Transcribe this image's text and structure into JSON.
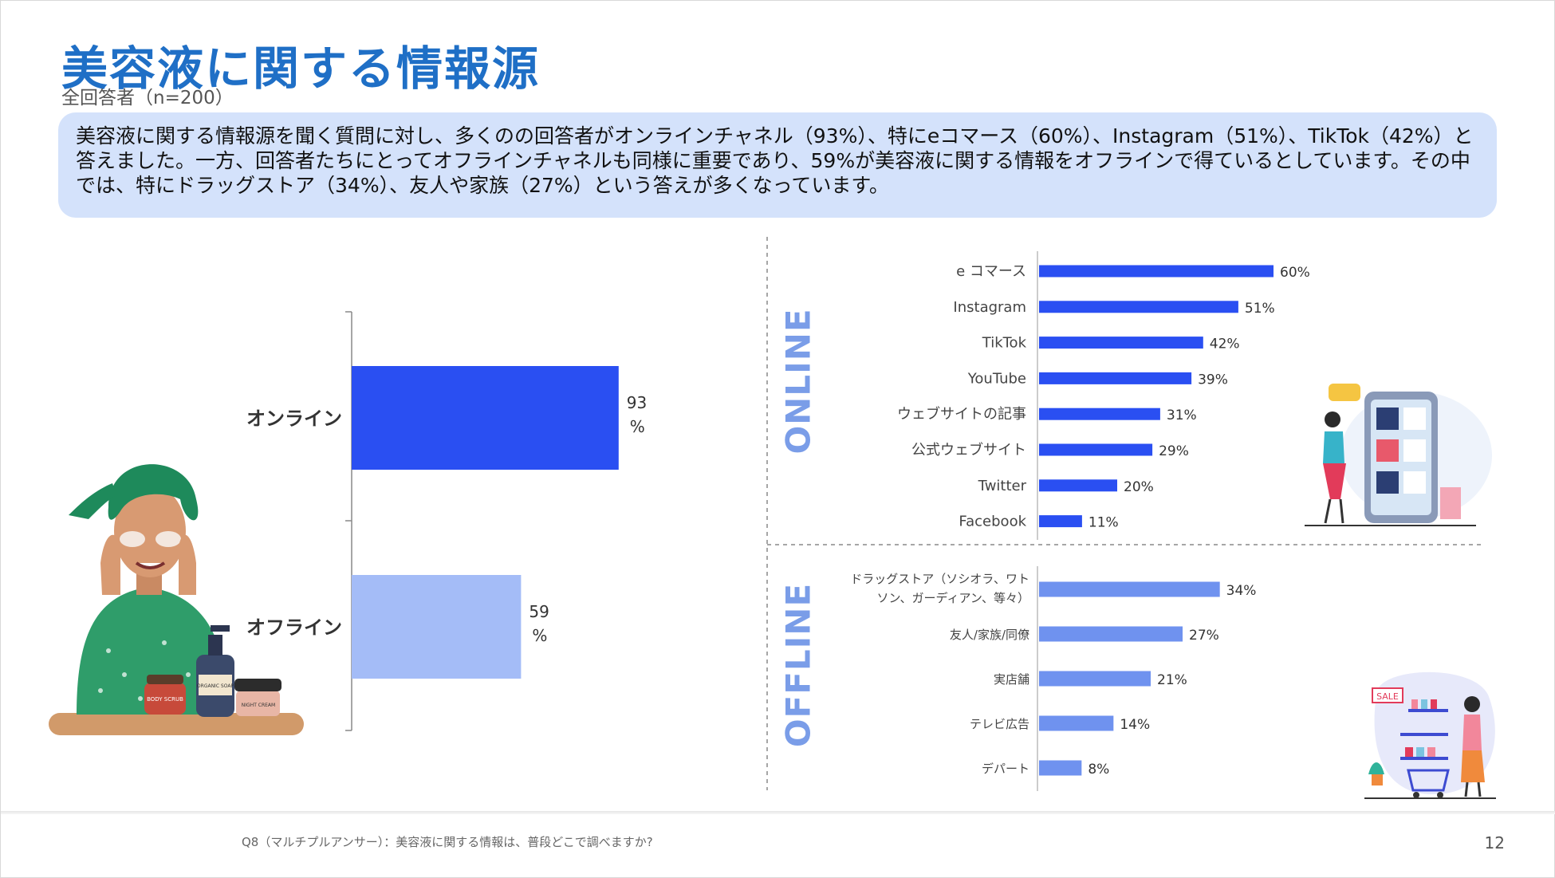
{
  "slide": {
    "title": "美容液に関する情報源",
    "subtitle": "全回答者（n=200）",
    "summary": "美容液に関する情報源を聞く質問に対し、多くのの回答者がオンラインチャネル（93%）、特にeコマース（60%）、Instagram（51%）、TikTok（42%）と答えました。一方、回答者たちにとってオフラインチャネルも同様に重要であり、59%が美容液に関する情報をオフラインで得ているとしています。その中では、特にドラッグストア（34%）、友人や家族（27%）という答えが多くなっています。",
    "footnote": "Q8（マルチプルアンサー）：美容液に関する情報は、普段どこで調べますか?",
    "page_number": "12"
  },
  "colors": {
    "title": "#1f6fc6",
    "online_bar": "#2a4ff2",
    "offline_bar": "#a4bcf7",
    "online_items_bar": "#2a4ff2",
    "offline_items_bar": "#6f92ef",
    "section_label": "#7a9de8",
    "summary_bg": "#d4e2fb"
  },
  "chart_data": [
    {
      "type": "bar",
      "orientation": "horizontal",
      "title": "",
      "categories": [
        "オンライン",
        "オフライン"
      ],
      "values": [
        93,
        59
      ],
      "value_labels": [
        "93\n%",
        "59\n%"
      ],
      "xlim": [
        0,
        100
      ]
    },
    {
      "type": "bar",
      "orientation": "horizontal",
      "section_label": "ONLINE",
      "categories": [
        "e コマース",
        "Instagram",
        "TikTok",
        "YouTube",
        "ウェブサイトの記事",
        "公式ウェブサイト",
        "Twitter",
        "Facebook"
      ],
      "values": [
        60,
        51,
        42,
        39,
        31,
        29,
        20,
        11
      ],
      "value_labels": [
        "60%",
        "51%",
        "42%",
        "39%",
        "31%",
        "29%",
        "20%",
        "11%"
      ],
      "xlim": [
        0,
        100
      ]
    },
    {
      "type": "bar",
      "orientation": "horizontal",
      "section_label": "OFFLINE",
      "categories": [
        "ドラッグストア（ソシオラ、ワトソン、ガーディアン、等々）",
        "友人/家族/同僚",
        "実店舗",
        "テレビ広告",
        "デパート"
      ],
      "values": [
        34,
        27,
        21,
        14,
        8
      ],
      "value_labels": [
        "34%",
        "27%",
        "21%",
        "14%",
        "8%"
      ],
      "xlim": [
        0,
        60
      ]
    }
  ],
  "illustration_text": {
    "jar1": "BODY SCRUB",
    "bottle": "ORGANIC SOAP",
    "jar2": "NIGHT CREAM",
    "shop_sign": "SALE"
  }
}
